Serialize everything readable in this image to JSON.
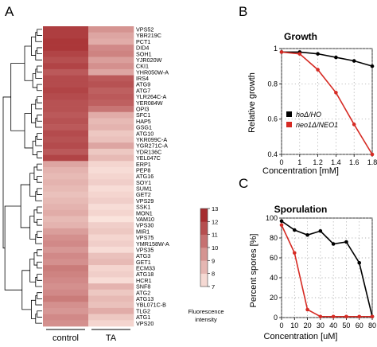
{
  "panels": {
    "a": "A",
    "b": "B",
    "c": "C"
  },
  "colors": {
    "heat_low": "#fdeae3",
    "heat_high": "#9e1b1f",
    "series_control": "#000000",
    "series_mutant": "#d62b24"
  },
  "chart_data": [
    {
      "type": "heatmap",
      "panel": "A",
      "columns": [
        "control",
        "TA"
      ],
      "rows": [
        {
          "gene": "VPS52",
          "control": 12.0,
          "TA": 9.5
        },
        {
          "gene": "YBR219C",
          "control": 12.0,
          "TA": 9.0
        },
        {
          "gene": "PCT1",
          "control": 12.2,
          "TA": 8.8
        },
        {
          "gene": "DID4",
          "control": 12.2,
          "TA": 9.8
        },
        {
          "gene": "SOH1",
          "control": 11.8,
          "TA": 10.0
        },
        {
          "gene": "YJR020W",
          "control": 11.5,
          "TA": 9.2
        },
        {
          "gene": "CKI1",
          "control": 11.8,
          "TA": 9.6
        },
        {
          "gene": "YHR050W-A",
          "control": 11.2,
          "TA": 9.0
        },
        {
          "gene": "IRS4",
          "control": 11.6,
          "TA": 11.2
        },
        {
          "gene": "ATG9",
          "control": 11.6,
          "TA": 11.4
        },
        {
          "gene": "ATG7",
          "control": 11.8,
          "TA": 11.0
        },
        {
          "gene": "YLR264C-A",
          "control": 11.6,
          "TA": 11.2
        },
        {
          "gene": "YER084W",
          "control": 11.4,
          "TA": 11.0
        },
        {
          "gene": "OPI3",
          "control": 11.4,
          "TA": 10.4
        },
        {
          "gene": "SFC1",
          "control": 11.2,
          "TA": 8.8
        },
        {
          "gene": "HAP5",
          "control": 11.4,
          "TA": 8.4
        },
        {
          "gene": "GSG1",
          "control": 11.2,
          "TA": 8.6
        },
        {
          "gene": "ATG10",
          "control": 11.6,
          "TA": 8.0
        },
        {
          "gene": "YKR099C-A",
          "control": 11.4,
          "TA": 8.2
        },
        {
          "gene": "YGR271C-A",
          "control": 11.6,
          "TA": 9.0
        },
        {
          "gene": "YDR136C",
          "control": 11.2,
          "TA": 8.0
        },
        {
          "gene": "YEL047C",
          "control": 11.8,
          "TA": 8.4
        },
        {
          "gene": "ERP1",
          "control": 9.0,
          "TA": 7.6
        },
        {
          "gene": "PEP8",
          "control": 8.6,
          "TA": 7.4
        },
        {
          "gene": "ATG16",
          "control": 8.4,
          "TA": 7.6
        },
        {
          "gene": "SOY1",
          "control": 8.6,
          "TA": 7.8
        },
        {
          "gene": "SUM1",
          "control": 8.4,
          "TA": 7.4
        },
        {
          "gene": "GET2",
          "control": 8.2,
          "TA": 7.6
        },
        {
          "gene": "VPS29",
          "control": 8.4,
          "TA": 7.8
        },
        {
          "gene": "SSK1",
          "control": 8.6,
          "TA": 7.4
        },
        {
          "gene": "MON1",
          "control": 8.8,
          "TA": 7.6
        },
        {
          "gene": "VAM10",
          "control": 8.4,
          "TA": 7.2
        },
        {
          "gene": "VPS30",
          "control": 8.6,
          "TA": 7.8
        },
        {
          "gene": "MIR1",
          "control": 9.2,
          "TA": 8.0
        },
        {
          "gene": "VPS75",
          "control": 9.6,
          "TA": 7.6
        },
        {
          "gene": "YMR158W-A",
          "control": 9.8,
          "TA": 7.8
        },
        {
          "gene": "VPS35",
          "control": 9.4,
          "TA": 7.4
        },
        {
          "gene": "ATG3",
          "control": 9.8,
          "TA": 8.2
        },
        {
          "gene": "GET1",
          "control": 9.6,
          "TA": 8.4
        },
        {
          "gene": "ECM33",
          "control": 10.2,
          "TA": 7.6
        },
        {
          "gene": "ATG18",
          "control": 10.0,
          "TA": 7.8
        },
        {
          "gene": "HCR1",
          "control": 9.8,
          "TA": 7.4
        },
        {
          "gene": "SNF8",
          "control": 9.6,
          "TA": 8.6
        },
        {
          "gene": "ATG2",
          "control": 9.8,
          "TA": 8.0
        },
        {
          "gene": "ATG13",
          "control": 10.2,
          "TA": 8.4
        },
        {
          "gene": "YBL071C-B",
          "control": 9.6,
          "TA": 8.2
        },
        {
          "gene": "TLG2",
          "control": 9.4,
          "TA": 8.8
        },
        {
          "gene": "ATG1",
          "control": 9.8,
          "TA": 8.0
        },
        {
          "gene": "VPS20",
          "control": 9.6,
          "TA": 7.6
        }
      ],
      "color_scale": {
        "min": 7,
        "max": 13,
        "ticks": [
          7,
          8,
          9,
          10,
          11,
          12,
          13
        ],
        "label": "Fluorescence intensity"
      }
    },
    {
      "type": "line",
      "panel": "B",
      "title": "Growth",
      "xlabel": "Concentration [mM]",
      "ylabel": "Relative growth",
      "x": [
        0,
        0.2,
        0.4,
        0.6,
        0.8,
        1.0,
        1.2,
        1.4,
        1.6,
        1.8
      ],
      "xlim": [
        0,
        1.8
      ],
      "ylim": [
        0.4,
        1.0
      ],
      "x_ticks": [
        "0",
        "1",
        "1.2",
        "1.4",
        "1.6",
        "1.8"
      ],
      "x_tick_values": [
        0,
        1,
        1.2,
        1.4,
        1.6,
        1.8
      ],
      "y_ticks": [
        "0.4",
        "0.6",
        "0.8",
        "1"
      ],
      "y_tick_values": [
        0.4,
        0.6,
        0.8,
        1.0
      ],
      "grid": true,
      "legend_position": "bottom-left",
      "series": [
        {
          "name": "hoΔ/HO",
          "x": [
            0,
            1,
            1.2,
            1.4,
            1.6,
            1.8
          ],
          "values": [
            0.98,
            0.98,
            0.97,
            0.95,
            0.93,
            0.9
          ]
        },
        {
          "name": "neo1Δ/NEO1",
          "x": [
            0,
            1,
            1.2,
            1.4,
            1.6,
            1.8
          ],
          "values": [
            0.98,
            0.97,
            0.88,
            0.75,
            0.57,
            0.4
          ]
        }
      ]
    },
    {
      "type": "line",
      "panel": "C",
      "title": "Sporulation",
      "xlabel": "Concentration [uM]",
      "ylabel": "Percent spores [%]",
      "xlim": [
        0,
        80
      ],
      "ylim": [
        0,
        100
      ],
      "x_ticks": [
        "0",
        "10",
        "20",
        "30",
        "40",
        "50",
        "60",
        "80"
      ],
      "x_tick_values": [
        0,
        10,
        20,
        30,
        40,
        50,
        60,
        80
      ],
      "y_ticks": [
        "0",
        "20",
        "40",
        "60",
        "80",
        "100"
      ],
      "y_tick_values": [
        0,
        20,
        40,
        60,
        80,
        100
      ],
      "grid": true,
      "series": [
        {
          "x": [
            0,
            10,
            20,
            30,
            40,
            50,
            60,
            80
          ],
          "values": [
            97,
            88,
            83,
            87,
            74,
            76,
            55,
            1
          ]
        },
        {
          "x": [
            0,
            10,
            20,
            30,
            40,
            50,
            60,
            80
          ],
          "values": [
            93,
            65,
            8,
            1,
            1,
            1,
            1,
            1
          ]
        }
      ]
    }
  ]
}
